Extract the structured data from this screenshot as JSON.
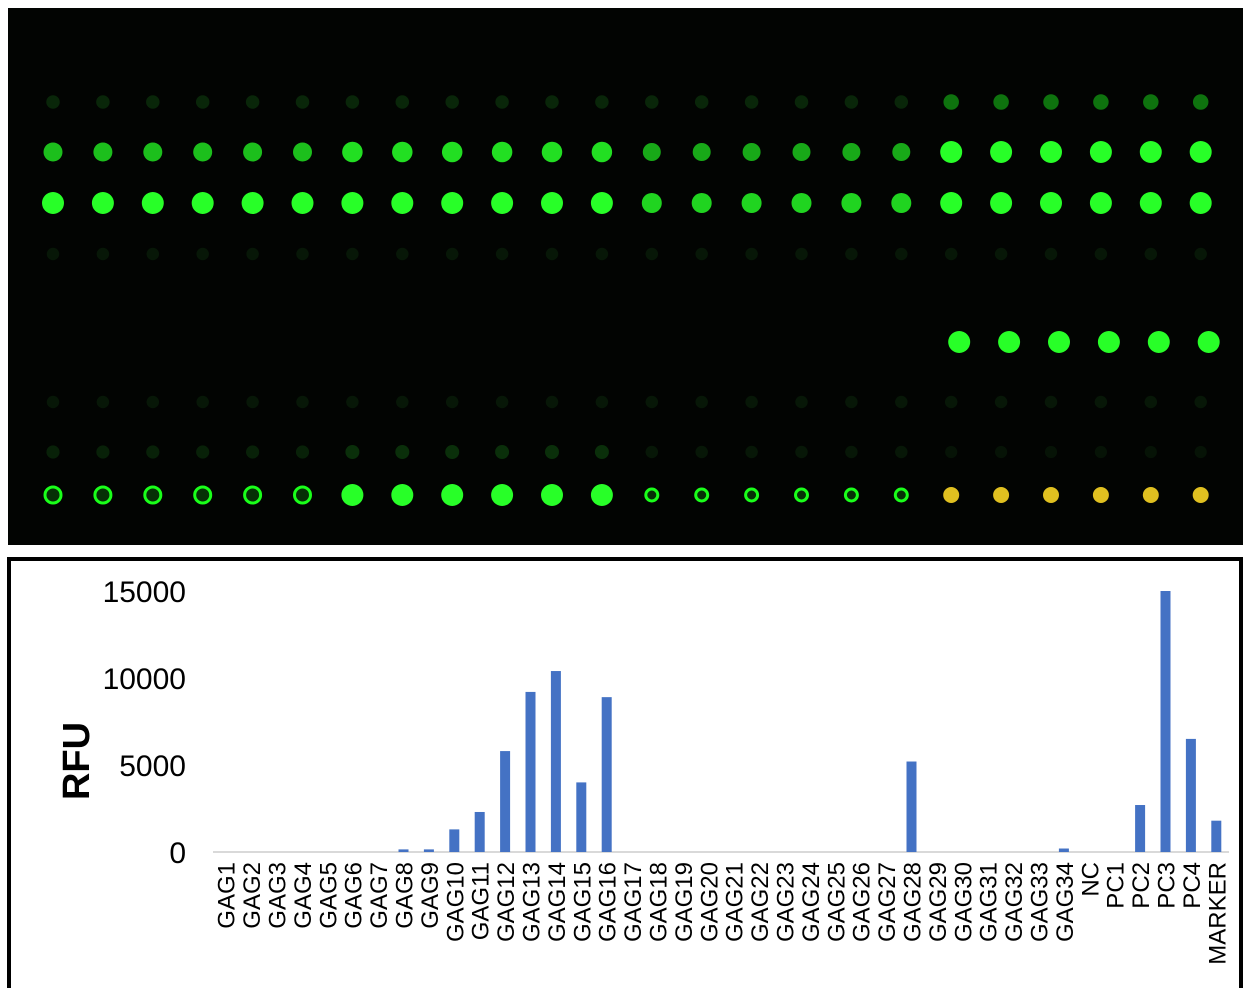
{
  "array_image": {
    "background": "#020402",
    "colors": {
      "spot_bright": "#22ff22",
      "spot_dim": "#0d5a0d",
      "spot_ring": "#1aff1a",
      "marker": "#e0c020"
    },
    "columns": 24,
    "rows": [
      {
        "intensity": [
          0.15,
          0.15,
          0.15,
          0.15,
          0.15,
          0.15,
          0.15,
          0.15,
          0.15,
          0.15,
          0.15,
          0.15,
          0.15,
          0.15,
          0.15,
          0.15,
          0.15,
          0.15,
          0.35,
          0.35,
          0.35,
          0.35,
          0.35,
          0.35
        ]
      },
      {
        "intensity": [
          0.7,
          0.7,
          0.7,
          0.7,
          0.7,
          0.7,
          0.85,
          0.85,
          0.85,
          0.85,
          0.85,
          0.85,
          0.6,
          0.6,
          0.6,
          0.6,
          0.6,
          0.6,
          1,
          1,
          1,
          1,
          1,
          1
        ]
      },
      {
        "intensity": [
          1,
          1,
          1,
          1,
          1,
          1,
          1,
          1,
          1,
          1,
          1,
          1,
          0.8,
          0.8,
          0.8,
          0.8,
          0.8,
          0.8,
          1,
          1,
          1,
          1,
          1,
          1
        ]
      },
      {
        "intensity": [
          0.05,
          0.05,
          0.05,
          0.05,
          0.05,
          0.05,
          0.05,
          0.05,
          0.05,
          0.05,
          0.05,
          0.05,
          0.05,
          0.05,
          0.05,
          0.05,
          0.05,
          0.05,
          0.05,
          0.05,
          0.05,
          0.05,
          0.05,
          0.05
        ]
      },
      {
        "intensity": [
          0,
          0,
          0,
          0,
          0,
          0,
          0,
          0,
          0,
          0,
          0,
          0,
          0,
          0,
          0,
          0,
          0,
          0,
          1,
          1,
          1,
          1,
          1,
          1
        ]
      },
      {
        "intensity": [
          0.05,
          0.05,
          0.05,
          0.05,
          0.05,
          0.05,
          0.05,
          0.05,
          0.05,
          0.05,
          0.05,
          0.05,
          0.05,
          0.05,
          0.05,
          0.05,
          0.05,
          0.05,
          0.05,
          0.05,
          0.05,
          0.05,
          0.05,
          0.05
        ]
      },
      {
        "intensity": [
          0.12,
          0.12,
          0.12,
          0.12,
          0.12,
          0.12,
          0.2,
          0.2,
          0.2,
          0.2,
          0.2,
          0.2,
          0.05,
          0.05,
          0.05,
          0.05,
          0.05,
          0.05,
          0.02,
          0.02,
          0.02,
          0.02,
          0.02,
          0.02
        ]
      },
      {
        "intensity": [
          1,
          1,
          1,
          1,
          1,
          1,
          1,
          1,
          1,
          1,
          1,
          1,
          1,
          1,
          1,
          1,
          1,
          1,
          1,
          1,
          1,
          1,
          1,
          1
        ],
        "style": [
          "ring",
          "ring",
          "ring",
          "ring",
          "ring",
          "ring",
          "solid",
          "solid",
          "solid",
          "solid",
          "solid",
          "solid",
          "ring",
          "ring",
          "ring",
          "ring",
          "ring",
          "ring",
          "marker",
          "marker",
          "marker",
          "marker",
          "marker",
          "marker"
        ]
      }
    ]
  },
  "chart_data": {
    "type": "bar",
    "title": "",
    "xlabel": "",
    "ylabel": "RFU",
    "ylim": [
      0,
      15000
    ],
    "yticks": [
      0,
      5000,
      10000,
      15000
    ],
    "bar_color": "#4472c4",
    "grid": false,
    "categories": [
      "GAG1",
      "GAG2",
      "GAG3",
      "GAG4",
      "GAG5",
      "GAG6",
      "GAG7",
      "GAG8",
      "GAG9",
      "GAG10",
      "GAG11",
      "GAG12",
      "GAG13",
      "GAG14",
      "GAG15",
      "GAG16",
      "GAG17",
      "GAG18",
      "GAG19",
      "GAG20",
      "GAG21",
      "GAG22",
      "GAG23",
      "GAG24",
      "GAG25",
      "GAG26",
      "GAG27",
      "GAG28",
      "GAG29",
      "GAG30",
      "GAG31",
      "GAG32",
      "GAG33",
      "GAG34",
      "NC",
      "PC1",
      "PC2",
      "PC3",
      "PC4",
      "MARKER"
    ],
    "values": [
      0,
      0,
      0,
      0,
      0,
      0,
      0,
      150,
      150,
      1300,
      2300,
      5800,
      9200,
      10400,
      4000,
      8900,
      0,
      0,
      0,
      0,
      0,
      0,
      0,
      0,
      0,
      0,
      0,
      5200,
      0,
      0,
      0,
      0,
      0,
      200,
      0,
      0,
      2700,
      15000,
      6500,
      1800
    ]
  }
}
